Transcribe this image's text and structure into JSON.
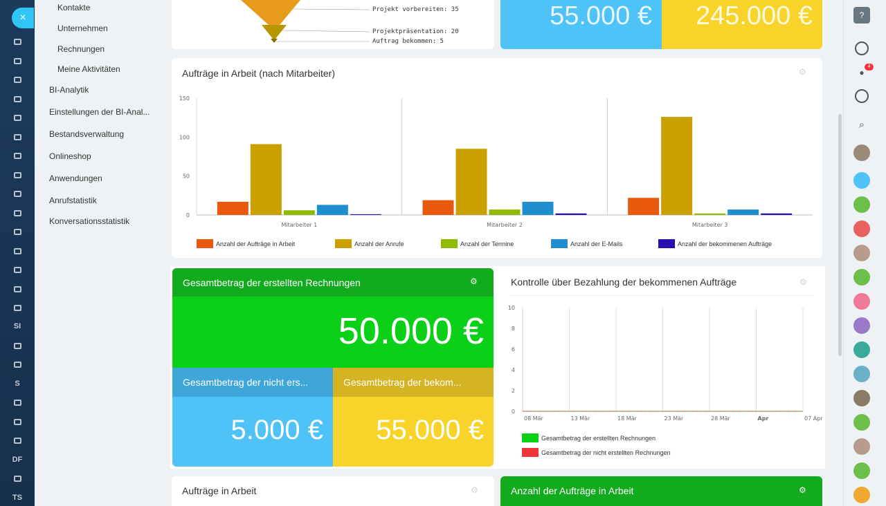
{
  "menu": {
    "sub_items": [
      "Kontakte",
      "Unternehmen",
      "Rechnungen",
      "Meine Aktivitäten"
    ],
    "items": [
      "BI-Analytik",
      "Einstellungen der BI-Anal...",
      "Bestandsverwaltung",
      "Onlineshop",
      "Anwendungen",
      "Anrufstatistik",
      "Konversationsstatistik"
    ]
  },
  "rail": {
    "close": "×",
    "labels": [
      "SI",
      "S",
      "DF",
      "TS"
    ]
  },
  "funnel": {
    "labels": [
      "Projekt vorbereiten: 35",
      "Projektpräsentation: 20",
      "Auftrag bekommen: 5"
    ]
  },
  "top_tiles": {
    "left_value": "55.000 €",
    "right_value": "245.000 €"
  },
  "employees_chart": {
    "title": "Aufträge in Arbeit (nach Mitarbeiter)",
    "legend": [
      "Anzahl der Aufträge in Arbeit",
      "Anzahl der Anrufe",
      "Anzahl der Termine",
      "Anzahl der E-Mails",
      "Anzahl der bekommenen Aufträge"
    ]
  },
  "invoices": {
    "main_title": "Gesamtbetrag der erstellten Rechnungen",
    "main_value": "50.000 €",
    "left_title": "Gesamtbetrag der nicht ers...",
    "left_value": "5.000 €",
    "right_title": "Gesamtbetrag der bekom...",
    "right_value": "55.000 €"
  },
  "payment_chart": {
    "title": "Kontrolle über Bezahlung der bekommenen Aufträge",
    "legend": [
      "Gesamtbetrag der erstellten Rechnungen",
      "Gesamtbetrag der nicht erstellten Rechnungen"
    ]
  },
  "bottom": {
    "left_title": "Aufträge in Arbeit",
    "right_title": "Anzahl der Aufträge in Arbeit"
  },
  "right_panel": {
    "help": "?",
    "notifications_badge": "4"
  },
  "colors": {
    "orange": "#e8590c",
    "gold": "#c9a000",
    "olive": "#8fbb00",
    "blue": "#1f8ecf",
    "indigo": "#2a0fb0",
    "green_tile": "#0bd018",
    "green_header": "#13ab1e",
    "blue_tile": "#4fc2f7",
    "blue_header": "#3ea6d9",
    "yellow_tile": "#f8d42a",
    "yellow_header": "#d4b423",
    "red": "#f0353a"
  },
  "chart_data": [
    {
      "type": "bar",
      "title": "Aufträge in Arbeit (nach Mitarbeiter)",
      "categories": [
        "Mitarbeiter 1",
        "Mitarbeiter 2",
        "Mitarbeiter 3"
      ],
      "ylim": [
        0,
        150
      ],
      "yticks": [
        0,
        50,
        100,
        150
      ],
      "series": [
        {
          "name": "Anzahl der Aufträge in Arbeit",
          "color": "#e8590c",
          "values": [
            17,
            19,
            22
          ]
        },
        {
          "name": "Anzahl der Anrufe",
          "color": "#c9a000",
          "values": [
            91,
            85,
            126
          ]
        },
        {
          "name": "Anzahl der Termine",
          "color": "#8fbb00",
          "values": [
            6,
            7,
            2
          ]
        },
        {
          "name": "Anzahl der E-Mails",
          "color": "#1f8ecf",
          "values": [
            13,
            17,
            7
          ]
        },
        {
          "name": "Anzahl der bekommenen Aufträge",
          "color": "#2a0fb0",
          "values": [
            1,
            2,
            2
          ]
        }
      ],
      "grid": false,
      "legend": "bottom"
    },
    {
      "type": "line",
      "title": "Kontrolle über Bezahlung der bekommenen Aufträge",
      "x": [
        "08 Mär",
        "13 Mär",
        "18 Mär",
        "23 Mär",
        "28 Mär",
        "Apr",
        "07 Apr"
      ],
      "ylim": [
        0,
        10
      ],
      "yticks": [
        0,
        2,
        4,
        6,
        8,
        10
      ],
      "series": [
        {
          "name": "Gesamtbetrag der erstellten Rechnungen",
          "color": "#0bd018",
          "values": [
            0,
            0,
            0,
            0,
            0,
            0,
            0
          ]
        },
        {
          "name": "Gesamtbetrag der nicht erstellten Rechnungen",
          "color": "#f0353a",
          "values": [
            0,
            0,
            0,
            0,
            0,
            0,
            0
          ]
        }
      ],
      "grid": true,
      "legend": "bottom"
    }
  ]
}
